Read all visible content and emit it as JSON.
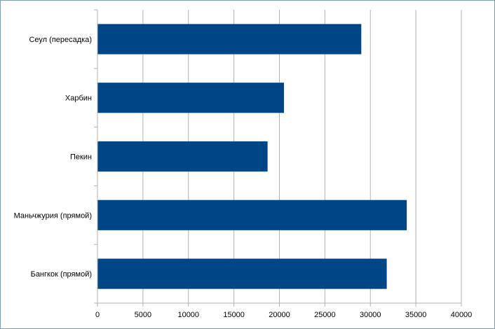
{
  "chart_data": {
    "type": "bar",
    "orientation": "horizontal",
    "title": "",
    "xlabel": "",
    "ylabel": "",
    "categories": [
      "Сеул (пересадка)",
      "Харбин",
      "Пекин",
      "Маньчжурия (прямой)",
      "Бангкок (прямой)"
    ],
    "values": [
      29000,
      20500,
      18700,
      34000,
      31800
    ],
    "xlim": [
      0,
      40000
    ],
    "x_ticks": [
      "0",
      "5000",
      "10000",
      "15000",
      "20000",
      "25000",
      "30000",
      "35000",
      "40000"
    ],
    "grid": "vertical",
    "legend": "none",
    "bar_color": "#004586",
    "grid_color": "#b3b3b3"
  }
}
